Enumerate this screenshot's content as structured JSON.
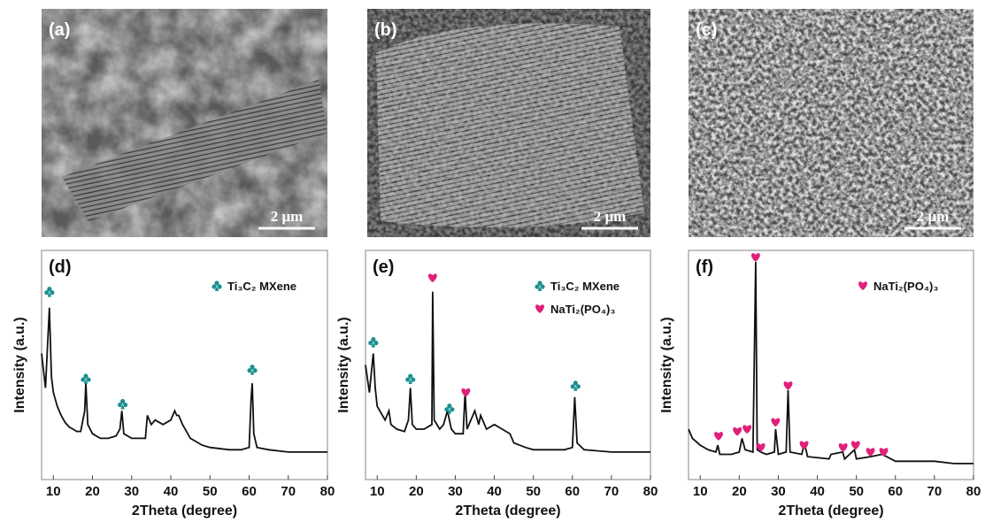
{
  "images": [
    {
      "label": "(a)",
      "scale_bar": "2 μm"
    },
    {
      "label": "(b)",
      "scale_bar": "2 μm"
    },
    {
      "label": "(c)",
      "scale_bar": "2 μm"
    }
  ],
  "chart_data": [
    {
      "type": "line",
      "panel": "(d)",
      "xlabel": "2Theta (degree)",
      "ylabel": "Intensity (a.u.)",
      "xlim": [
        7,
        80
      ],
      "xticks": [
        10,
        20,
        30,
        40,
        50,
        60,
        70,
        80
      ],
      "ylim": [
        0,
        100
      ],
      "legend": "upper right",
      "series": [
        {
          "color": "#111111",
          "x": [
            7,
            8,
            9,
            9.5,
            10,
            11,
            12,
            13,
            14,
            15,
            16,
            17,
            18,
            18.3,
            18.8,
            20,
            22,
            24,
            26,
            27,
            27.5,
            28,
            30,
            32,
            33.5,
            34,
            35,
            36,
            38,
            40,
            41,
            41.5,
            42,
            43,
            45,
            48,
            50,
            55,
            58,
            60,
            60.5,
            60.8,
            61.2,
            62,
            65,
            70,
            75,
            80
          ],
          "values": [
            55,
            40,
            75,
            45,
            38,
            32,
            28,
            25,
            23,
            22,
            21,
            21,
            30,
            42,
            24,
            20,
            18,
            18,
            19,
            22,
            30,
            20,
            18,
            18,
            18,
            28,
            24,
            26,
            24,
            26,
            30,
            28,
            28,
            24,
            18,
            15,
            14,
            13,
            13,
            14,
            35,
            42,
            20,
            14,
            13,
            12,
            12,
            12
          ]
        },
        {
          "name": "Ti₃C₂ MXene",
          "color": "#1b8f8f",
          "marker": "club",
          "x": [
            9,
            18.3,
            27.7,
            60.8
          ],
          "values": [
            82,
            44,
            33,
            48
          ]
        }
      ]
    },
    {
      "type": "line",
      "panel": "(e)",
      "xlabel": "2Theta (degree)",
      "ylabel": "Intensity (a.u.)",
      "xlim": [
        7,
        80
      ],
      "xticks": [
        10,
        20,
        30,
        40,
        50,
        60,
        70,
        80
      ],
      "ylim": [
        0,
        100
      ],
      "legend": "upper right",
      "series": [
        {
          "color": "#111111",
          "x": [
            7,
            8,
            9,
            9.5,
            10,
            12,
            13,
            13.5,
            15,
            17,
            18,
            18.5,
            19,
            20,
            22,
            24,
            24.2,
            24.6,
            26,
            27,
            28,
            29,
            30,
            32,
            32.5,
            33,
            34,
            35,
            36,
            36.5,
            38,
            40,
            42,
            44,
            45,
            48,
            50,
            55,
            58,
            60,
            60.6,
            61.2,
            63,
            70,
            80
          ],
          "values": [
            50,
            38,
            55,
            40,
            32,
            26,
            30,
            24,
            22,
            21,
            26,
            40,
            24,
            22,
            22,
            24,
            82,
            26,
            22,
            24,
            30,
            22,
            20,
            20,
            38,
            22,
            26,
            30,
            24,
            28,
            22,
            24,
            22,
            20,
            16,
            14,
            13,
            13,
            13,
            14,
            36,
            16,
            13,
            12,
            12
          ]
        },
        {
          "name": "Ti₃C₂ MXene",
          "color": "#1b8f8f",
          "marker": "club",
          "x": [
            9,
            18.5,
            28.5,
            60.8
          ],
          "values": [
            60,
            44,
            31,
            41
          ]
        },
        {
          "name": "NaTi₂(PO₄)₃",
          "color": "#e0207a",
          "marker": "heart",
          "x": [
            24.2,
            32.7
          ],
          "values": [
            88,
            38
          ]
        }
      ]
    },
    {
      "type": "line",
      "panel": "(f)",
      "xlabel": "2Theta (degree)",
      "ylabel": "Intensity (a.u.)",
      "xlim": [
        7,
        80
      ],
      "xticks": [
        10,
        20,
        30,
        40,
        50,
        60,
        70,
        80
      ],
      "ylim": [
        0,
        100
      ],
      "legend": "upper right",
      "series": [
        {
          "color": "#111111",
          "x": [
            7,
            8,
            10,
            12,
            14,
            14.5,
            15,
            18,
            20,
            20.7,
            21.5,
            23.5,
            24.2,
            24.6,
            25.5,
            27,
            29,
            29.3,
            30,
            32,
            32.5,
            33,
            36,
            36.7,
            37.5,
            43,
            43.5,
            46.5,
            47,
            49.5,
            50,
            53.6,
            56.6,
            60,
            65,
            70,
            75,
            80
          ],
          "values": [
            22,
            18,
            15,
            13,
            12,
            15,
            11,
            11,
            12,
            18,
            13,
            12,
            95,
            13,
            12,
            11,
            12,
            22,
            11,
            12,
            39,
            12,
            11,
            16,
            10,
            9,
            11,
            12,
            9,
            13,
            9,
            10,
            11,
            8,
            8,
            8,
            7,
            7
          ]
        },
        {
          "name": "NaTi₂(PO₄)₃",
          "color": "#e0207a",
          "marker": "heart",
          "x": [
            14.7,
            19.5,
            22,
            24.2,
            25.5,
            29.3,
            32.5,
            36.6,
            46.6,
            49.8,
            53.6,
            57
          ],
          "values": [
            19,
            21,
            22,
            97,
            14,
            25,
            41,
            15,
            14,
            15,
            12,
            12
          ]
        }
      ]
    }
  ]
}
